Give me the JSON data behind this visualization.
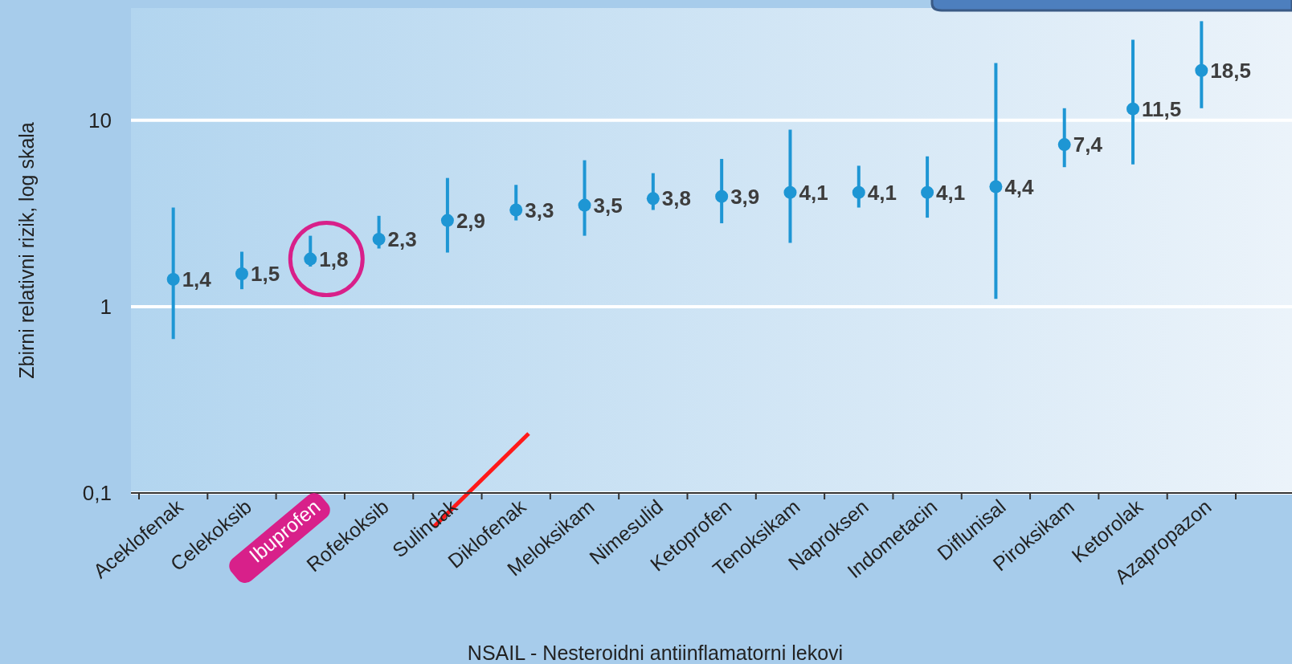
{
  "chart_data": {
    "type": "scatter",
    "xlabel": "NSAIL - Nesteroidni antiinflamatorni lekovi",
    "ylabel": "Zbirni relativni rizik, log skala",
    "categories": [
      "Aceklofenak",
      "Celekoksib",
      "Ibuprofen",
      "Rofekoksib",
      "Sulindak",
      "Diklofenak",
      "Meloksikam",
      "Nimesulid",
      "Ketoprofen",
      "Tenoksikam",
      "Naproksen",
      "Indometacin",
      "Diflunisal",
      "Piroksikam",
      "Ketorolak",
      "Azapropazon"
    ],
    "values": [
      1.4,
      1.5,
      1.8,
      2.3,
      2.9,
      3.3,
      3.5,
      3.8,
      3.9,
      4.1,
      4.1,
      4.1,
      4.4,
      7.4,
      11.5,
      18.5
    ],
    "value_labels": [
      "1,4",
      "1,5",
      "1,8",
      "2,3",
      "2,9",
      "3,3",
      "3,5",
      "3,8",
      "3,9",
      "4,1",
      "4,1",
      "4,1",
      "4,4",
      "7,4",
      "11,5",
      "18,5"
    ],
    "errors": [
      [
        0.67,
        3.4
      ],
      [
        1.24,
        1.97
      ],
      [
        1.64,
        2.4
      ],
      [
        2.05,
        3.07
      ],
      [
        1.95,
        4.9
      ],
      [
        2.9,
        4.5
      ],
      [
        2.4,
        6.1
      ],
      [
        3.3,
        5.2
      ],
      [
        2.8,
        6.2
      ],
      [
        2.2,
        8.9
      ],
      [
        3.4,
        5.7
      ],
      [
        3.0,
        6.4
      ],
      [
        1.1,
        20.3
      ],
      [
        5.6,
        11.6
      ],
      [
        5.8,
        27
      ],
      [
        11.6,
        34
      ]
    ],
    "color": "#1e96d4",
    "marker": "circle",
    "log": true,
    "grid": "y",
    "ylim": [
      0.1,
      40
    ],
    "yticks": [
      {
        "value": 0.1,
        "label": "0,1"
      },
      1,
      10
    ]
  }
}
